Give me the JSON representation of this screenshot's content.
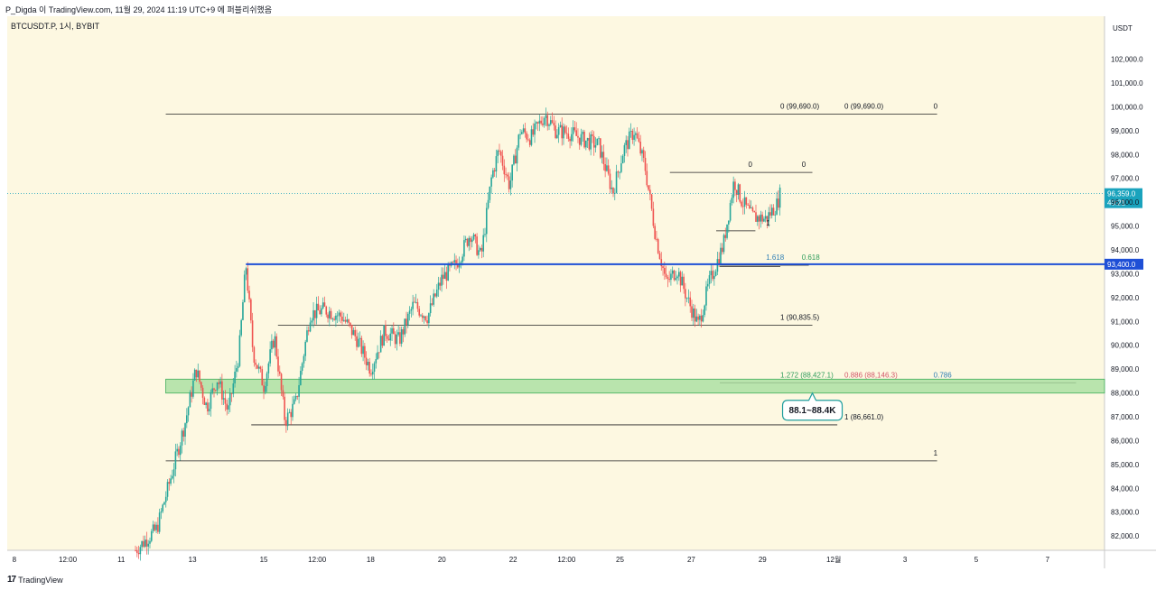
{
  "header": {
    "publish_info": "P_Digda 이 TradingView.com, 11월 29, 2024 11:19 UTC+9 에 퍼블리쉬했음"
  },
  "footer": {
    "brand": "TradingView"
  },
  "chart_data": {
    "type": "candlestick",
    "symbol_label": "BTCUSDT.P, 1시, BYBIT",
    "currency": "USDT",
    "ylim": [
      81400,
      103800
    ],
    "price_ticks": [
      "82,000.0",
      "83,000.0",
      "84,000.0",
      "85,000.0",
      "86,000.0",
      "87,000.0",
      "88,000.0",
      "89,000.0",
      "90,000.0",
      "91,000.0",
      "92,000.0",
      "93,000.0",
      "94,000.0",
      "95,000.0",
      "96,000.0",
      "97,000.0",
      "98,000.0",
      "99,000.0",
      "100,000.0",
      "101,000.0",
      "102,000.0"
    ],
    "price_tick_values": [
      82000,
      83000,
      84000,
      85000,
      86000,
      87000,
      88000,
      89000,
      90000,
      91000,
      92000,
      93000,
      94000,
      95000,
      96000,
      97000,
      98000,
      99000,
      100000,
      101000,
      102000
    ],
    "time_ticks": [
      "8",
      "12:00",
      "11",
      "13",
      "15",
      "12:00",
      "18",
      "20",
      "22",
      "12:00",
      "25",
      "27",
      "29",
      "12월",
      "3",
      "5",
      "7"
    ],
    "time_tick_days": [
      8,
      9.5,
      11,
      13,
      15,
      16.5,
      18,
      20,
      22,
      23.5,
      25,
      27,
      29,
      31,
      33,
      35,
      37
    ],
    "x_range_days": [
      7.8,
      38.6
    ],
    "current_price": {
      "value": 96359,
      "label": "96,359.0",
      "countdown": "40:21"
    },
    "key_level": {
      "value": 93400,
      "label": "93,400.0"
    },
    "support_zone": {
      "low": 88146,
      "high": 88427,
      "callout": "88.1~88.4K"
    },
    "path": [
      [
        11.4,
        81400
      ],
      [
        12.0,
        82300
      ],
      [
        12.4,
        84500
      ],
      [
        12.8,
        86800
      ],
      [
        13.1,
        89000
      ],
      [
        13.4,
        87400
      ],
      [
        13.7,
        88600
      ],
      [
        14.0,
        87200
      ],
      [
        14.3,
        89600
      ],
      [
        14.5,
        93400
      ],
      [
        14.7,
        89700
      ],
      [
        15.0,
        88300
      ],
      [
        15.3,
        90400
      ],
      [
        15.6,
        86800
      ],
      [
        15.9,
        87600
      ],
      [
        16.3,
        91300
      ],
      [
        16.7,
        91500
      ],
      [
        17.2,
        91200
      ],
      [
        17.6,
        90300
      ],
      [
        18.0,
        89000
      ],
      [
        18.4,
        90600
      ],
      [
        18.8,
        90200
      ],
      [
        19.2,
        91700
      ],
      [
        19.6,
        91200
      ],
      [
        20.0,
        92800
      ],
      [
        20.4,
        93400
      ],
      [
        20.8,
        94700
      ],
      [
        21.1,
        93700
      ],
      [
        21.4,
        97100
      ],
      [
        21.6,
        98200
      ],
      [
        21.9,
        96700
      ],
      [
        22.2,
        99000
      ],
      [
        22.5,
        98700
      ],
      [
        22.9,
        99690
      ],
      [
        23.2,
        99000
      ],
      [
        23.6,
        98900
      ],
      [
        24.0,
        98600
      ],
      [
        24.4,
        98400
      ],
      [
        24.8,
        96400
      ],
      [
        25.1,
        98200
      ],
      [
        25.4,
        99000
      ],
      [
        25.7,
        97500
      ],
      [
        26.0,
        94600
      ],
      [
        26.3,
        92600
      ],
      [
        26.6,
        93200
      ],
      [
        26.9,
        91900
      ],
      [
        27.2,
        90835
      ],
      [
        27.5,
        92600
      ],
      [
        27.9,
        94200
      ],
      [
        28.2,
        96900
      ],
      [
        28.4,
        96100
      ],
      [
        28.7,
        95400
      ],
      [
        29.1,
        95300
      ],
      [
        29.4,
        95900
      ],
      [
        29.5,
        96359
      ]
    ],
    "levels": [
      {
        "value": 99690,
        "x0": 12.25,
        "x1": 33.9,
        "labels": [
          {
            "text": "0 (99,690.0)",
            "x": 29.5,
            "color": "#131722"
          },
          {
            "text": "0 (99,690.0)",
            "x": 31.3,
            "color": "#131722"
          },
          {
            "text": "0",
            "x": 33.8,
            "color": "#131722"
          }
        ]
      },
      {
        "value": 97250,
        "x0": 26.4,
        "x1": 30.4,
        "labels": [
          {
            "text": "0",
            "x": 28.6,
            "color": "#131722"
          },
          {
            "text": "0",
            "x": 30.1,
            "color": "#131722"
          }
        ]
      },
      {
        "value": 94800,
        "x0": 27.7,
        "x1": 28.8,
        "labels": [
          {
            "text": "1",
            "x": 29.1,
            "color": "#131722"
          }
        ]
      },
      {
        "value": 93360,
        "x0": 27.8,
        "x1": 30.3,
        "labels": [
          {
            "text": "1.618",
            "x": 29.1,
            "color": "#2f7fb5"
          },
          {
            "text": "0.618",
            "x": 30.1,
            "color": "#2e9c5a"
          }
        ]
      },
      {
        "value": 93300,
        "x0": 27.8,
        "x1": 29.5,
        "labels": []
      },
      {
        "value": 90835,
        "x0": 15.4,
        "x1": 30.4,
        "labels": [
          {
            "text": "1 (90,835.5)",
            "x": 29.5,
            "color": "#131722"
          }
        ]
      },
      {
        "value": 88427,
        "x0": 27.8,
        "x1": 37.8,
        "labels": [
          {
            "text": "1.272 (88,427.1)",
            "x": 29.5,
            "color": "#2e9c5a"
          },
          {
            "text": "0.886 (88,146.3)",
            "x": 31.3,
            "color": "#d2576a"
          },
          {
            "text": "0.786",
            "x": 33.8,
            "color": "#2f7fb5"
          }
        ]
      },
      {
        "value": 86661,
        "x0": 14.65,
        "x1": 31.1,
        "labels": [
          {
            "text": "1 (86,661.0)",
            "x": 31.3,
            "color": "#131722"
          }
        ]
      },
      {
        "value": 85150,
        "x0": 12.25,
        "x1": 33.9,
        "labels": [
          {
            "text": "1",
            "x": 33.8,
            "color": "#131722"
          }
        ]
      }
    ],
    "grid": false,
    "background": "#fdf8e1",
    "colors": {
      "up": "#26a69a",
      "down": "#ef5350",
      "key_level": "#1e4fd6",
      "zone_fill": "#a8dfa0",
      "zone_border": "#3fae5a",
      "current_price": "#1aa3bd",
      "callout_border": "#1f9e9e"
    }
  }
}
